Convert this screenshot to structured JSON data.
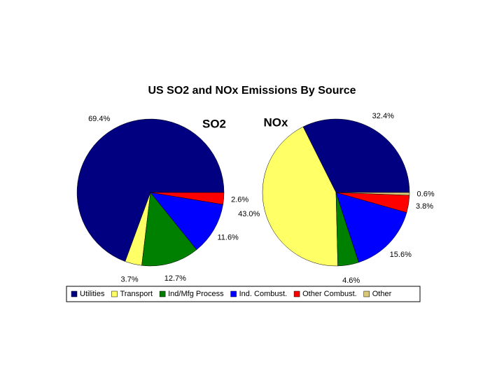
{
  "title": "US SO2 and NOx Emissions By Source",
  "chart_data": [
    {
      "type": "pie",
      "title": "SO2",
      "categories": [
        "Utilities",
        "Transport",
        "Ind/Mfg Process",
        "Ind. Combust.",
        "Other Combust."
      ],
      "values": [
        69.4,
        3.7,
        12.7,
        11.6,
        2.6
      ],
      "value_labels": [
        "69.4%",
        "3.7%",
        "12.7%",
        "11.6%",
        "2.6%"
      ],
      "colors": [
        "#000080",
        "#ffff66",
        "#008000",
        "#0000ff",
        "#ff0000"
      ]
    },
    {
      "type": "pie",
      "title": "NOx",
      "categories": [
        "Utilities",
        "Transport",
        "Ind/Mfg Process",
        "Ind. Combust.",
        "Other Combust.",
        "Other"
      ],
      "values": [
        32.4,
        43.0,
        4.6,
        15.6,
        3.8,
        0.6
      ],
      "value_labels": [
        "32.4%",
        "43.0%",
        "4.6%",
        "15.6%",
        "3.8%",
        "0.6%"
      ],
      "colors": [
        "#000080",
        "#ffff66",
        "#008000",
        "#0000ff",
        "#ff0000",
        "#d8c878"
      ]
    }
  ]
}
